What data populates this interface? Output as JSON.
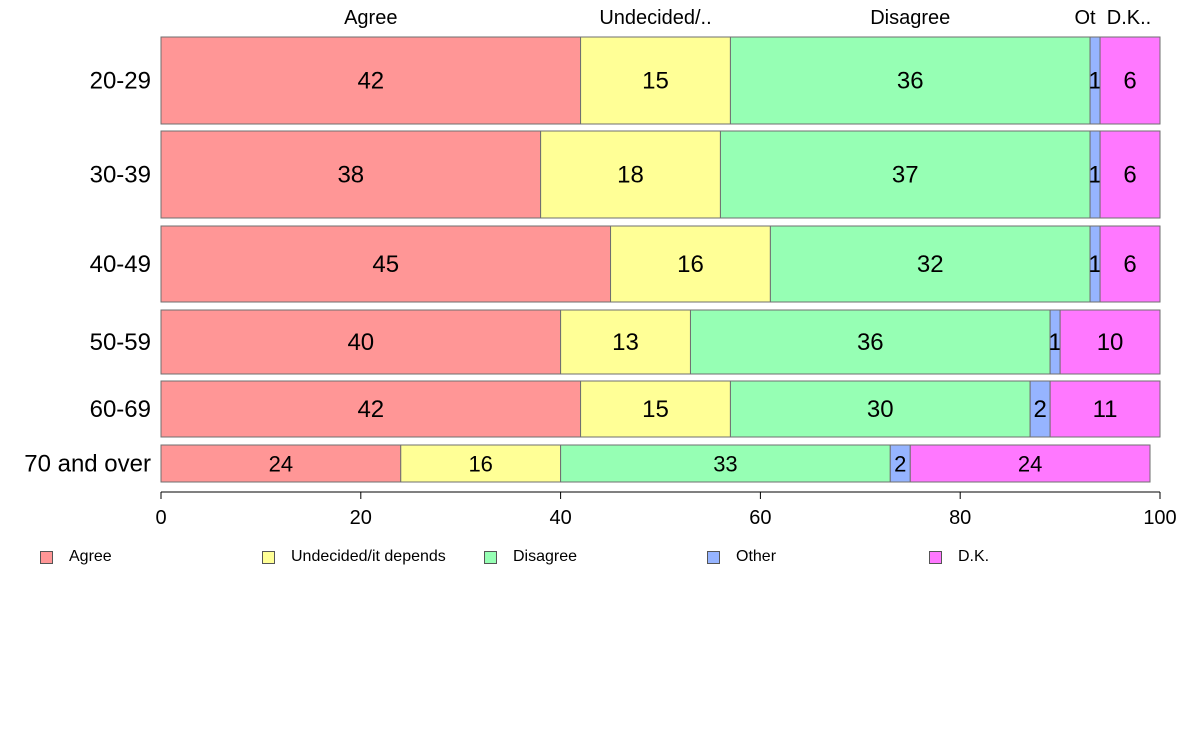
{
  "chart_data": {
    "type": "bar",
    "orientation": "horizontal",
    "stacked": true,
    "categories": [
      "20-29",
      "30-39",
      "40-49",
      "50-59",
      "60-69",
      "70 and over"
    ],
    "series": [
      {
        "name": "Agree",
        "short_label": "Agree",
        "color": "#ff9696",
        "values": [
          42,
          38,
          45,
          40,
          42,
          24
        ]
      },
      {
        "name": "Undecided/it depends",
        "short_label": "Undecided/..",
        "color": "#ffff96",
        "values": [
          15,
          18,
          16,
          13,
          15,
          16
        ]
      },
      {
        "name": "Disagree",
        "short_label": "Disagree",
        "color": "#96ffb4",
        "values": [
          36,
          37,
          32,
          36,
          30,
          33
        ]
      },
      {
        "name": "Other",
        "short_label": "Ot",
        "color": "#96b4ff",
        "values": [
          1,
          1,
          1,
          1,
          2,
          2
        ]
      },
      {
        "name": "D.K.",
        "short_label": "D.K..",
        "color": "#ff78ff",
        "values": [
          6,
          6,
          6,
          10,
          11,
          24
        ]
      }
    ],
    "xlim": [
      0,
      100
    ],
    "xticks": [
      0,
      20,
      40,
      60,
      80,
      100
    ],
    "grid": false,
    "legend_position": "bottom"
  }
}
